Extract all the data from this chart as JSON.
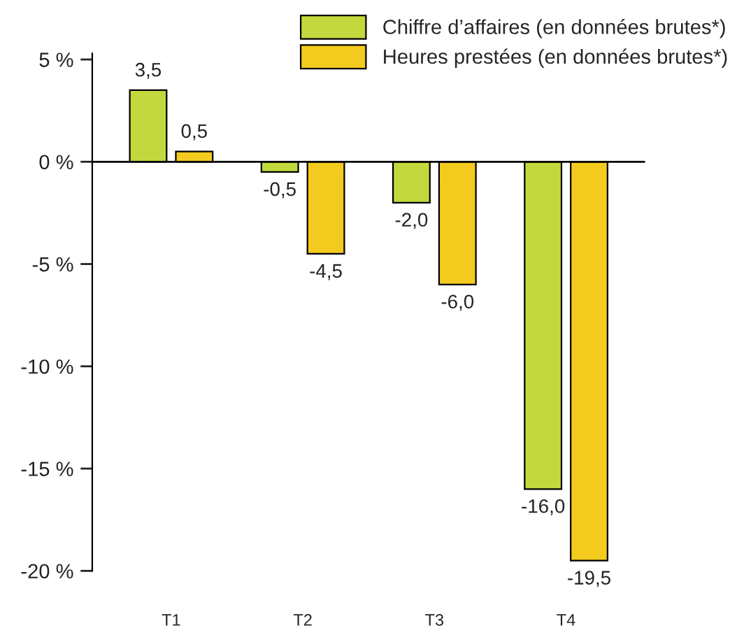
{
  "chart_data": {
    "type": "bar",
    "categories": [
      "T1",
      "T2",
      "T3",
      "T4"
    ],
    "series": [
      {
        "name": "Chiffre d’affaires (en données brutes*)",
        "color": "#c3d83c",
        "values": [
          3.5,
          -0.5,
          -2.0,
          -16.0
        ],
        "value_labels": [
          "3,5",
          "-0,5",
          "-2,0",
          "-16,0"
        ]
      },
      {
        "name": "Heures prestées (en données brutes*)",
        "color": "#f3cb1f",
        "values": [
          0.5,
          -4.5,
          -6.0,
          -19.5
        ],
        "value_labels": [
          "0,5",
          "-4,5",
          "-6,0",
          "-19,5"
        ]
      }
    ],
    "ylim": [
      -20,
      5.3
    ],
    "yticks": [
      {
        "value": 5,
        "label": "5 %"
      },
      {
        "value": 0,
        "label": "0 %"
      },
      {
        "value": -5,
        "label": "-5 %"
      },
      {
        "value": -10,
        "label": "-10 %"
      },
      {
        "value": -15,
        "label": "-15 %"
      },
      {
        "value": -20,
        "label": "-20 %"
      }
    ],
    "ref_lines": [
      {
        "axis": "y",
        "value": 0,
        "color": "#000000"
      }
    ],
    "grid": false,
    "legend": "top right"
  }
}
